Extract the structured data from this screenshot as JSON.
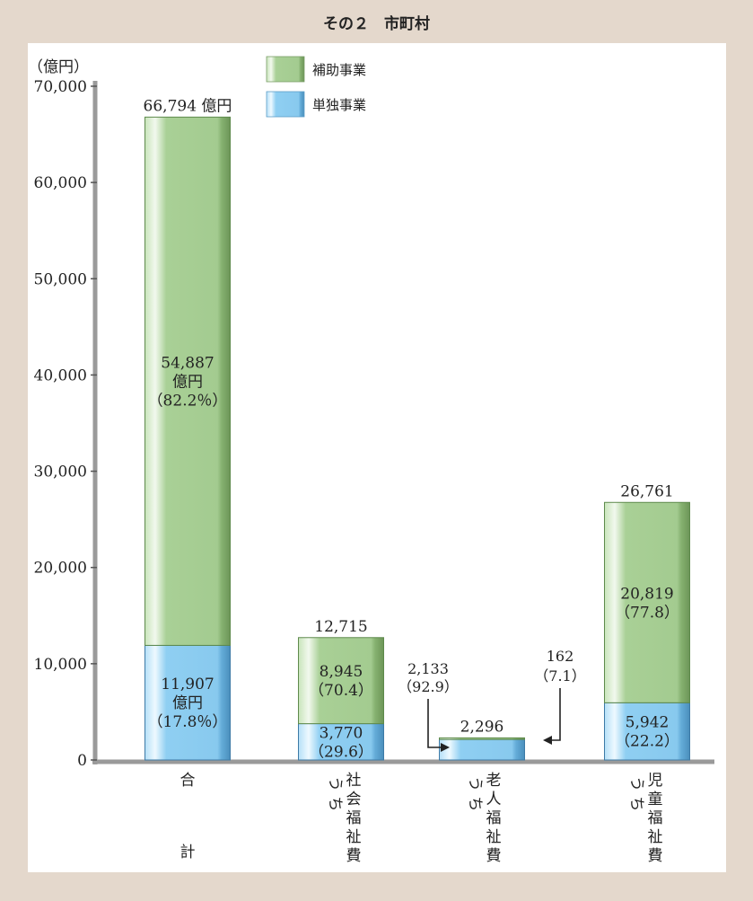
{
  "title": "その２　市町村",
  "chart_data": {
    "type": "bar",
    "stacked": true,
    "unit_label": "（億円）",
    "ylim": [
      0,
      70000
    ],
    "yticks": [
      "0",
      "10,000",
      "20,000",
      "30,000",
      "40,000",
      "50,000",
      "60,000",
      "70,000"
    ],
    "legend": [
      {
        "name": "補助事業",
        "color": "#a8cf96"
      },
      {
        "name": "単独事業",
        "color": "#8dcdf1"
      }
    ],
    "categories": [
      {
        "label": "合計",
        "total": 66794,
        "total_label": "66,794 億円",
        "hojo": 54887,
        "hojo_label": [
          "54,887",
          "億円",
          "（82.2％）"
        ],
        "tandoku": 11907,
        "tandoku_label": [
          "11,907",
          "億円",
          "（17.8％）"
        ]
      },
      {
        "label": "うち社会福祉費",
        "total": 12715,
        "total_label": "12,715",
        "hojo": 8945,
        "hojo_label": [
          "8,945",
          "（70.4）"
        ],
        "tandoku": 3770,
        "tandoku_label": [
          "3,770",
          "（29.6）"
        ]
      },
      {
        "label": "うち老人福祉費",
        "total": 2296,
        "total_label": "2,296",
        "hojo": 162,
        "hojo_label": [
          "162",
          "（7.1）"
        ],
        "tandoku": 2133,
        "tandoku_label": [
          "2,133",
          "（92.9）"
        ]
      },
      {
        "label": "うち児童福祉費",
        "total": 26761,
        "total_label": "26,761",
        "hojo": 20819,
        "hojo_label": [
          "20,819",
          "（77.8）"
        ],
        "tandoku": 5942,
        "tandoku_label": [
          "5,942",
          "（22.2）"
        ]
      }
    ],
    "category_text": {
      "c0": {
        "top": "合",
        "bottom": "計"
      },
      "c1": {
        "prefix": "う ち",
        "chars": [
          "社",
          "会",
          "福",
          "祉",
          "費"
        ]
      },
      "c2": {
        "prefix": "う ち",
        "chars": [
          "老",
          "人",
          "福",
          "祉",
          "費"
        ]
      },
      "c3": {
        "prefix": "う ち",
        "chars": [
          "児",
          "童",
          "福",
          "祉",
          "費"
        ]
      }
    }
  }
}
